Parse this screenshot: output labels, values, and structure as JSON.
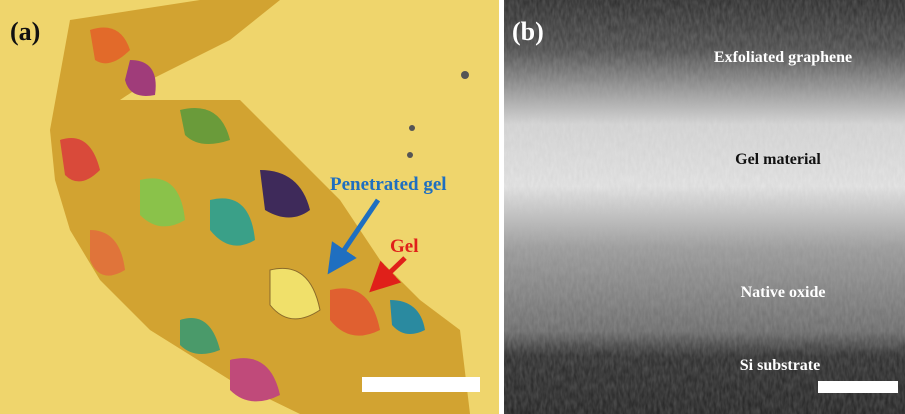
{
  "panels": [
    {
      "label": "(a)",
      "annotations": [
        "Penetrated gel",
        "Gel"
      ]
    },
    {
      "label": "(b)",
      "annotations": [
        "Exfoliated graphene",
        "Gel material",
        "Native oxide",
        "Si substrate"
      ]
    }
  ]
}
